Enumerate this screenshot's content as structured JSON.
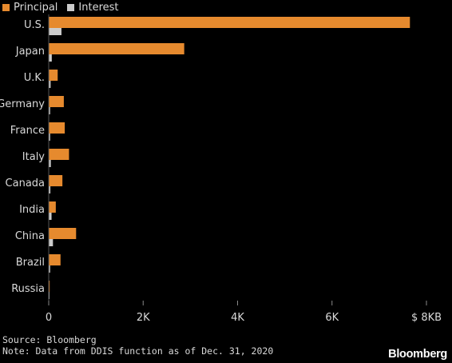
{
  "chart_data": {
    "type": "bar",
    "orientation": "horizontal",
    "categories": [
      "U.S.",
      "Japan",
      "U.K.",
      "Germany",
      "France",
      "Italy",
      "Canada",
      "India",
      "China",
      "Brazil",
      "Russia"
    ],
    "series": [
      {
        "name": "Principal",
        "color": "#e68a2e",
        "values": [
          7650,
          2870,
          190,
          320,
          340,
          430,
          290,
          150,
          580,
          250,
          20
        ]
      },
      {
        "name": "Interest",
        "color": "#cccccc",
        "values": [
          270,
          65,
          40,
          30,
          30,
          45,
          35,
          60,
          90,
          30,
          15
        ]
      }
    ],
    "xlim": [
      0,
      8000
    ],
    "xticks": [
      0,
      2000,
      4000,
      6000,
      8000
    ],
    "xtick_labels": [
      "0",
      "2K",
      "4K",
      "6K",
      "$ 8KB"
    ],
    "grid": false,
    "legend": "top-left"
  },
  "footer": {
    "source": "Source: Bloomberg",
    "note": "Note: Data from DDIS function as of Dec. 31, 2020"
  },
  "brand": "Bloomberg"
}
